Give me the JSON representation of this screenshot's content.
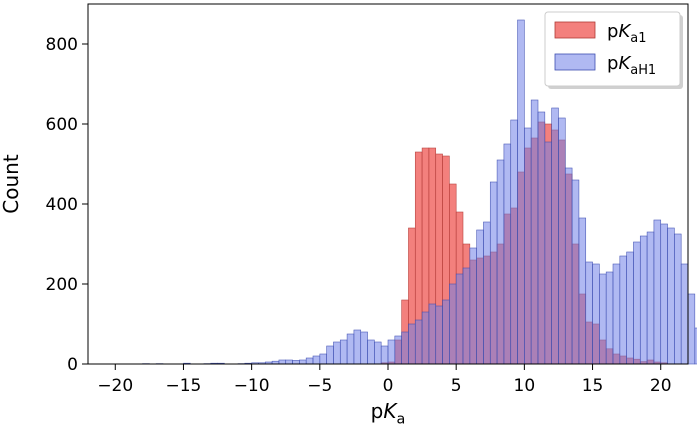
{
  "chart_data": {
    "type": "histogram",
    "xlabel": {
      "main": "p",
      "italic": "K",
      "sub": "a"
    },
    "ylabel": "Count",
    "xlim": [
      -22,
      22
    ],
    "ylim": [
      0,
      900
    ],
    "xticks": [
      -20,
      -15,
      -10,
      -5,
      0,
      5,
      10,
      15,
      20
    ],
    "xtick_labels": [
      "−20",
      "−15",
      "−10",
      "−5",
      "0",
      "5",
      "10",
      "15",
      "20"
    ],
    "yticks": [
      0,
      200,
      400,
      600,
      800
    ],
    "ytick_labels": [
      "0",
      "200",
      "400",
      "600",
      "800"
    ],
    "bin_width": 0.5,
    "legend_position": "upper right",
    "series": [
      {
        "name": "pKa1",
        "legend": {
          "main": "p",
          "italic": "K",
          "sub": "a1"
        },
        "color": "#f0605c",
        "edge": "#b03a36",
        "opacity": 0.8,
        "bin_start": -0.5,
        "counts": [
          3,
          5,
          60,
          160,
          340,
          530,
          540,
          540,
          525,
          520,
          450,
          380,
          300,
          260,
          265,
          270,
          280,
          300,
          375,
          390,
          480,
          540,
          565,
          605,
          600,
          585,
          560,
          475,
          300,
          175,
          105,
          100,
          60,
          38,
          25,
          20,
          15,
          12,
          6,
          10,
          5,
          3
        ]
      },
      {
        "name": "pKaH1",
        "legend": {
          "main": "p",
          "italic": "K",
          "sub": "aH1"
        },
        "color": "#6f7fe8",
        "edge": "#3e4fb0",
        "opacity": 0.55,
        "bin_start": -18,
        "counts": [
          1,
          0,
          1,
          0,
          0,
          0,
          2,
          0,
          0,
          1,
          2,
          2,
          0,
          0,
          1,
          2,
          3,
          3,
          5,
          7,
          10,
          10,
          9,
          10,
          15,
          20,
          25,
          45,
          55,
          60,
          75,
          85,
          80,
          60,
          55,
          45,
          60,
          70,
          80,
          100,
          110,
          130,
          150,
          145,
          160,
          200,
          225,
          240,
          290,
          335,
          355,
          455,
          510,
          550,
          610,
          860,
          590,
          660,
          630,
          555,
          640,
          615,
          490,
          460,
          365,
          255,
          250,
          225,
          230,
          250,
          270,
          280,
          305,
          320,
          330,
          360,
          350,
          340,
          325,
          250,
          175,
          90,
          60,
          35,
          25,
          20,
          10,
          6,
          3,
          2
        ]
      }
    ]
  }
}
